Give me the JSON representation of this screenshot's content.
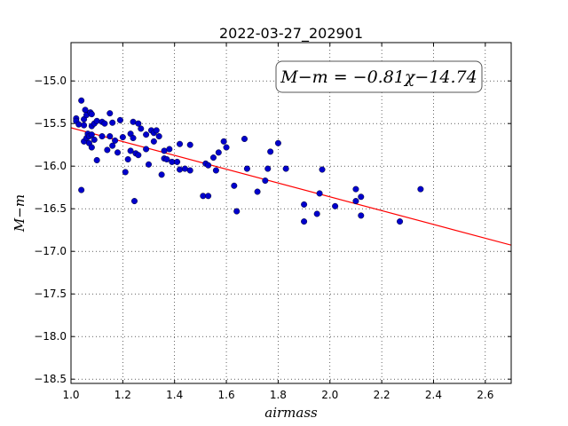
{
  "chart_data": {
    "type": "scatter",
    "title": "2022-03-27_202901",
    "xlabel": "airmass",
    "ylabel": "M−m",
    "xlim": [
      1.0,
      2.7
    ],
    "ylim": [
      -18.55,
      -14.55
    ],
    "x_ticks": [
      "1.0",
      "1.2",
      "1.4",
      "1.6",
      "1.8",
      "2.0",
      "2.2",
      "2.4",
      "2.6"
    ],
    "y_ticks": [
      "−15.0",
      "−15.5",
      "−16.0",
      "−16.5",
      "−17.0",
      "−17.5",
      "−18.0",
      "−18.5"
    ],
    "x_tick_values": [
      1.0,
      1.2,
      1.4,
      1.6,
      1.8,
      2.0,
      2.2,
      2.4,
      2.6
    ],
    "y_tick_values": [
      -15.0,
      -15.5,
      -16.0,
      -16.5,
      -17.0,
      -17.5,
      -18.0,
      -18.5
    ],
    "grid": true,
    "annotation": "M−m = −0.81χ−14.74",
    "fit": {
      "slope": -0.81,
      "intercept": -14.74,
      "color": "#ff0000"
    },
    "point_color": "#0000cc",
    "points": [
      [
        1.02,
        -15.44
      ],
      [
        1.02,
        -15.47
      ],
      [
        1.03,
        -15.51
      ],
      [
        1.04,
        -15.23
      ],
      [
        1.04,
        -16.28
      ],
      [
        1.05,
        -15.45
      ],
      [
        1.05,
        -15.52
      ],
      [
        1.05,
        -15.71
      ],
      [
        1.055,
        -15.34
      ],
      [
        1.06,
        -15.67
      ],
      [
        1.06,
        -15.4
      ],
      [
        1.065,
        -15.62
      ],
      [
        1.07,
        -15.65
      ],
      [
        1.07,
        -15.73
      ],
      [
        1.075,
        -15.37
      ],
      [
        1.08,
        -15.39
      ],
      [
        1.08,
        -15.53
      ],
      [
        1.08,
        -15.63
      ],
      [
        1.08,
        -15.78
      ],
      [
        1.09,
        -15.69
      ],
      [
        1.09,
        -15.5
      ],
      [
        1.1,
        -15.47
      ],
      [
        1.1,
        -15.93
      ],
      [
        1.12,
        -15.65
      ],
      [
        1.12,
        -15.48
      ],
      [
        1.13,
        -15.5
      ],
      [
        1.14,
        -15.81
      ],
      [
        1.15,
        -15.38
      ],
      [
        1.15,
        -15.65
      ],
      [
        1.16,
        -15.49
      ],
      [
        1.16,
        -15.76
      ],
      [
        1.17,
        -15.7
      ],
      [
        1.18,
        -15.84
      ],
      [
        1.19,
        -15.46
      ],
      [
        1.2,
        -15.66
      ],
      [
        1.21,
        -16.07
      ],
      [
        1.22,
        -15.92
      ],
      [
        1.23,
        -15.62
      ],
      [
        1.23,
        -15.82
      ],
      [
        1.24,
        -15.67
      ],
      [
        1.24,
        -15.48
      ],
      [
        1.245,
        -16.41
      ],
      [
        1.25,
        -15.85
      ],
      [
        1.26,
        -15.87
      ],
      [
        1.26,
        -15.5
      ],
      [
        1.27,
        -15.56
      ],
      [
        1.29,
        -15.8
      ],
      [
        1.29,
        -15.63
      ],
      [
        1.3,
        -15.98
      ],
      [
        1.31,
        -15.58
      ],
      [
        1.32,
        -15.71
      ],
      [
        1.32,
        -15.61
      ],
      [
        1.33,
        -15.58
      ],
      [
        1.34,
        -15.65
      ],
      [
        1.35,
        -16.1
      ],
      [
        1.36,
        -15.82
      ],
      [
        1.36,
        -15.91
      ],
      [
        1.37,
        -15.92
      ],
      [
        1.38,
        -15.8
      ],
      [
        1.39,
        -15.95
      ],
      [
        1.41,
        -15.95
      ],
      [
        1.42,
        -15.74
      ],
      [
        1.42,
        -16.04
      ],
      [
        1.44,
        -16.03
      ],
      [
        1.46,
        -16.05
      ],
      [
        1.46,
        -15.75
      ],
      [
        1.51,
        -16.35
      ],
      [
        1.52,
        -15.97
      ],
      [
        1.53,
        -16.35
      ],
      [
        1.53,
        -15.99
      ],
      [
        1.55,
        -15.9
      ],
      [
        1.56,
        -16.05
      ],
      [
        1.57,
        -15.84
      ],
      [
        1.59,
        -15.71
      ],
      [
        1.6,
        -15.78
      ],
      [
        1.63,
        -16.23
      ],
      [
        1.64,
        -16.53
      ],
      [
        1.67,
        -15.68
      ],
      [
        1.68,
        -16.03
      ],
      [
        1.72,
        -16.3
      ],
      [
        1.75,
        -16.17
      ],
      [
        1.76,
        -16.03
      ],
      [
        1.77,
        -15.83
      ],
      [
        1.8,
        -15.73
      ],
      [
        1.83,
        -16.03
      ],
      [
        1.9,
        -16.45
      ],
      [
        1.9,
        -16.65
      ],
      [
        1.95,
        -16.56
      ],
      [
        1.96,
        -16.32
      ],
      [
        1.97,
        -16.04
      ],
      [
        2.02,
        -16.47
      ],
      [
        2.1,
        -16.27
      ],
      [
        2.1,
        -16.41
      ],
      [
        2.12,
        -16.36
      ],
      [
        2.12,
        -16.58
      ],
      [
        2.27,
        -16.65
      ],
      [
        2.35,
        -16.27
      ]
    ]
  }
}
